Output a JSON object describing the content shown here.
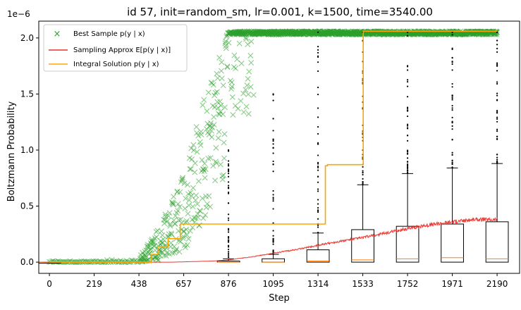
{
  "chart_data": {
    "type": "scatter",
    "title": "id 57, init=random_sm, lr=0.001, k=1500, time=3540.00",
    "xlabel": "Step",
    "ylabel": "Boltzmann Probability",
    "y_offset_label": "1e−6",
    "xlim": [
      -52,
      2300
    ],
    "ylim": [
      -0.1,
      2.15
    ],
    "y_scale_multiplier": "1e-6",
    "x_ticks": [
      "0",
      "219",
      "438",
      "657",
      "876",
      "1095",
      "1314",
      "1533",
      "1752",
      "1971",
      "2190"
    ],
    "y_ticks": [
      "0.0",
      "0.5",
      "1.0",
      "1.5",
      "2.0"
    ],
    "legend": {
      "position": "top-left",
      "entries": [
        {
          "label": "Best Sample p(y | x)",
          "marker": "x",
          "color": "#2ca02c"
        },
        {
          "label": "Sampling Approx E[p(y | x)]",
          "marker": "line",
          "color": "#e8302a"
        },
        {
          "label": "Integral Solution p(y | x)",
          "marker": "line",
          "color": "#ffa500"
        }
      ]
    },
    "integral_solution_step": {
      "x": [
        0,
        500,
        500,
        530,
        530,
        580,
        580,
        640,
        640,
        1350,
        1350,
        1360,
        1360,
        1535,
        1535,
        2190
      ],
      "y": [
        0.0,
        0.0,
        0.07,
        0.07,
        0.14,
        0.14,
        0.21,
        0.21,
        0.34,
        0.34,
        0.86,
        0.86,
        0.87,
        0.87,
        2.06,
        2.06
      ]
    },
    "sampling_approx_curve": {
      "x": [
        0,
        600,
        800,
        876,
        1000,
        1095,
        1200,
        1314,
        1400,
        1533,
        1650,
        1752,
        1850,
        1971,
        2080,
        2190
      ],
      "y": [
        0.0,
        0.0,
        0.01,
        0.02,
        0.05,
        0.08,
        0.11,
        0.15,
        0.18,
        0.22,
        0.26,
        0.3,
        0.33,
        0.36,
        0.38,
        0.38
      ]
    },
    "boxplots": [
      {
        "x": 0,
        "q1": 0.0,
        "median": 0.0,
        "q3": 0.0,
        "whisker_low": 0.0,
        "whisker_high": 0.0,
        "outlier_max": 0.0
      },
      {
        "x": 876,
        "q1": 0.0,
        "median": 0.0,
        "q3": 0.01,
        "whisker_low": 0.0,
        "whisker_high": 0.03,
        "outlier_max": 1.0
      },
      {
        "x": 1095,
        "q1": 0.0,
        "median": 0.0,
        "q3": 0.03,
        "whisker_low": 0.0,
        "whisker_high": 0.07,
        "outlier_max": 1.5
      },
      {
        "x": 1314,
        "q1": 0.0,
        "median": 0.01,
        "q3": 0.11,
        "whisker_low": 0.0,
        "whisker_high": 0.26,
        "outlier_max": 2.05
      },
      {
        "x": 1533,
        "q1": 0.0,
        "median": 0.02,
        "q3": 0.29,
        "whisker_low": 0.0,
        "whisker_high": 0.69,
        "outlier_max": 2.05
      },
      {
        "x": 1752,
        "q1": 0.0,
        "median": 0.03,
        "q3": 0.32,
        "whisker_low": 0.0,
        "whisker_high": 0.79,
        "outlier_max": 2.05
      },
      {
        "x": 1971,
        "q1": 0.0,
        "median": 0.04,
        "q3": 0.34,
        "whisker_low": 0.0,
        "whisker_high": 0.84,
        "outlier_max": 2.05
      },
      {
        "x": 2190,
        "q1": 0.0,
        "median": 0.03,
        "q3": 0.36,
        "whisker_low": 0.0,
        "whisker_high": 0.88,
        "outlier_max": 2.05
      }
    ],
    "best_sample_scatter_envelope": {
      "description_of_points": "dense cluster near 0 for steps 0-440; rising 0-0.9 for 440-870; saturating at ~2.05 from ~850 onward",
      "x": [
        0,
        219,
        438,
        550,
        657,
        760,
        876,
        1000,
        1095,
        1314,
        1533,
        1752,
        1971,
        2190
      ],
      "y_low": [
        0.0,
        0.0,
        0.0,
        0.02,
        0.1,
        0.4,
        0.8,
        2.03,
        2.04,
        2.04,
        2.04,
        2.04,
        2.04,
        2.04
      ],
      "y_high": [
        0.01,
        0.01,
        0.04,
        0.35,
        0.85,
        1.5,
        2.06,
        2.06,
        2.06,
        2.06,
        2.06,
        2.06,
        2.06,
        2.06
      ]
    },
    "grid": false
  }
}
